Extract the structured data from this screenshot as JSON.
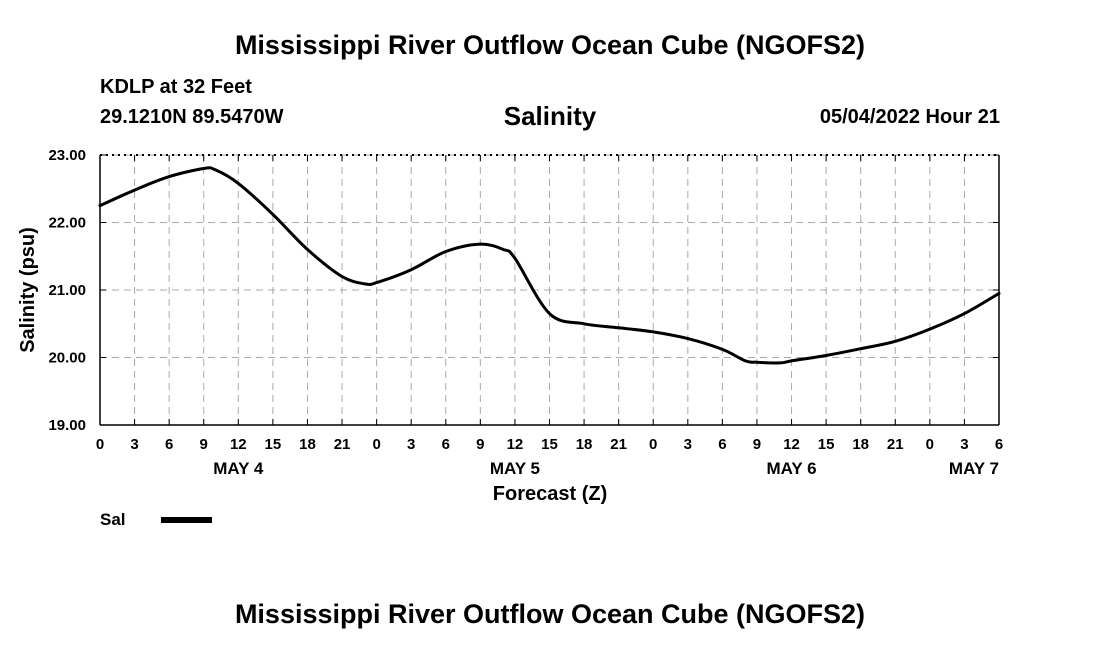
{
  "header": {
    "title": "Mississippi River Outflow Ocean Cube (NGOFS2)",
    "station": "KDLP at 32 Feet",
    "coords": "29.1210N  89.5470W",
    "subtitle": "Salinity",
    "datetime": "05/04/2022 Hour 21"
  },
  "footer": {
    "title": "Mississippi River Outflow Ocean Cube (NGOFS2)"
  },
  "legend": {
    "label": "Sal",
    "color": "#000000"
  },
  "chart_data": {
    "type": "line",
    "title": "Salinity",
    "xlabel": "Forecast (Z)",
    "ylabel": "Salinity (psu)",
    "ylim": [
      19.0,
      23.0
    ],
    "xlim": [
      0,
      78
    ],
    "yticks": [
      "19.00",
      "20.00",
      "21.00",
      "22.00",
      "23.00"
    ],
    "ytick_values": [
      19.0,
      20.0,
      21.0,
      22.0,
      23.0
    ],
    "xticks": [
      "0",
      "3",
      "6",
      "9",
      "12",
      "15",
      "18",
      "21",
      "0",
      "3",
      "6",
      "9",
      "12",
      "15",
      "18",
      "21",
      "0",
      "3",
      "6",
      "9",
      "12",
      "15",
      "18",
      "21",
      "0",
      "3",
      "6"
    ],
    "date_labels": [
      {
        "label": "MAY 4",
        "hour": 12
      },
      {
        "label": "MAY 5",
        "hour": 36
      },
      {
        "label": "MAY 6",
        "hour": 60
      },
      {
        "label": "MAY 7",
        "hour": 84
      }
    ],
    "grid": true,
    "series": [
      {
        "name": "Sal",
        "x": [
          0,
          3,
          6,
          9,
          10,
          12,
          15,
          18,
          21,
          23,
          24,
          27,
          30,
          33,
          35,
          36,
          39,
          42,
          45,
          48,
          51,
          54,
          56,
          57,
          59,
          60,
          63,
          66,
          69,
          72,
          75,
          78
        ],
        "values": [
          22.25,
          22.48,
          22.68,
          22.8,
          22.78,
          22.58,
          22.12,
          21.6,
          21.2,
          21.09,
          21.11,
          21.3,
          21.57,
          21.68,
          21.6,
          21.47,
          20.65,
          20.5,
          20.44,
          20.38,
          20.28,
          20.12,
          19.95,
          19.93,
          19.92,
          19.95,
          20.03,
          20.13,
          20.24,
          20.42,
          20.65,
          20.95
        ]
      }
    ]
  }
}
